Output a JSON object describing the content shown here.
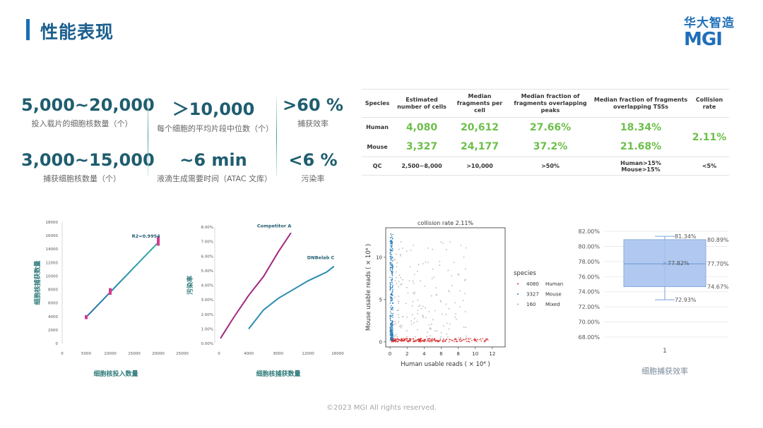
{
  "header": {
    "title": "性能表现"
  },
  "logo": {
    "cn": "华大智造",
    "en": "MGI"
  },
  "stats": [
    {
      "value": "5,000~20,000",
      "label": "投入载片的细胞核数量（个）"
    },
    {
      "value": "＞10,000",
      "label": "每个细胞的平均片段中位数（个）"
    },
    {
      "value": ">60 %",
      "label": "捕获效率"
    },
    {
      "value": "3,000~15,000",
      "label": "捕获细胞核数量（个）"
    },
    {
      "value": "~6 min",
      "label": "液滴生成需要时间（ATAC 文库）"
    },
    {
      "value": "<6 %",
      "label": "污染率"
    }
  ],
  "table": {
    "headers": [
      "Species",
      "Estimated number of cells",
      "Median fragments per cell",
      "Median fraction of fragments overlapping peaks",
      "Median fraction of fragments overlapping TSSs",
      "Collision rate"
    ],
    "rows": [
      {
        "species": "Human",
        "cells": "4,080",
        "fragments": "20,612",
        "peaks": "27.66%",
        "tss": "18.34%"
      },
      {
        "species": "Mouse",
        "cells": "3,327",
        "fragments": "24,177",
        "peaks": "37.2%",
        "tss": "21.68%"
      }
    ],
    "collision": "2.11%",
    "qc": {
      "species": "QC",
      "cells": "2,500~8,000",
      "fragments": ">10,000",
      "peaks": ">50%",
      "tss_line1": "Human>15%",
      "tss_line2": "Mouse>15%",
      "collision": "<5%"
    }
  },
  "chart_data": [
    {
      "type": "line",
      "xlabel": "细胞核投入数量",
      "ylabel": "细胞核捕获数量",
      "annotation": "R2=0.9954",
      "xticks": [
        "0",
        "5000",
        "10000",
        "15000",
        "20000",
        "25000"
      ],
      "yticks": [
        "0",
        "2000",
        "4000",
        "6000",
        "8000",
        "10000",
        "12000",
        "14000",
        "16000",
        "18000"
      ],
      "xlim": [
        0,
        25000
      ],
      "ylim": [
        0,
        18000
      ],
      "x": [
        5000,
        10000,
        20000
      ],
      "y": [
        3900,
        7600,
        15000
      ],
      "error_bars": [
        [
          3600,
          4200
        ],
        [
          7200,
          8200
        ],
        [
          14500,
          15800
        ]
      ],
      "grid": false
    },
    {
      "type": "line",
      "xlabel": "细胞核捕获数量",
      "ylabel": "污染率",
      "xticks": [
        "0",
        "4000",
        "8000",
        "12000",
        "16000"
      ],
      "yticks": [
        "0.00%",
        "1.00%",
        "2.00%",
        "3.00%",
        "4.00%",
        "5.00%",
        "6.00%",
        "7.00%",
        "8.00%"
      ],
      "xlim": [
        0,
        16000
      ],
      "ylim": [
        0,
        8
      ],
      "series": [
        {
          "name": "Competitor A",
          "color": "#a0287e",
          "x": [
            200,
            2000,
            4000,
            6000,
            8000,
            9700
          ],
          "y": [
            0.35,
            1.8,
            3.3,
            4.6,
            6.3,
            7.6
          ]
        },
        {
          "name": "DNBelab C",
          "color": "#2a8bb0",
          "x": [
            4000,
            6000,
            8000,
            10000,
            12000,
            14500,
            15500
          ],
          "y": [
            1.0,
            2.3,
            3.1,
            3.7,
            4.3,
            4.9,
            5.3
          ]
        }
      ],
      "grid": false
    },
    {
      "type": "scatter",
      "title": "collision rate 2.11%",
      "xlabel": "Human usable reads ( × 10⁴ )",
      "ylabel": "Mouse usable reads ( × 10⁴ )",
      "xticks": [
        "0",
        "2",
        "4",
        "6",
        "8",
        "10",
        "12"
      ],
      "yticks": [
        "0",
        "5",
        "10"
      ],
      "xlim": [
        -0.5,
        13.5
      ],
      "ylim": [
        -0.6,
        13.5
      ],
      "legend_title": "species",
      "legend": [
        {
          "count": "4080",
          "name": "Human",
          "color": "#d62728"
        },
        {
          "count": "3327",
          "name": "Mouse",
          "color": "#1f77b4"
        },
        {
          "count": "160",
          "name": "Mixed",
          "color": "#aaaaaa"
        }
      ],
      "series": [
        {
          "name": "Human",
          "count": 4080,
          "x_range": [
            0.2,
            12
          ],
          "y_range": [
            0,
            0.4
          ]
        },
        {
          "name": "Mouse",
          "count": 3327,
          "x_range": [
            0,
            0.35
          ],
          "y_range": [
            0.2,
            13
          ]
        },
        {
          "name": "Mixed",
          "count": 160,
          "x_range": [
            0.5,
            9
          ],
          "y_range": [
            0.5,
            12
          ]
        }
      ]
    },
    {
      "type": "box",
      "xlabel": "细胞捕获效率",
      "category": "1",
      "yticks": [
        "68.00%",
        "70.00%",
        "72.00%",
        "74.00%",
        "76.00%",
        "78.00%",
        "80.00%",
        "82.00%"
      ],
      "ylim": [
        68,
        82
      ],
      "whisker_high": 81.34,
      "q3": 80.89,
      "mean": 77.82,
      "median": 77.7,
      "q1": 74.67,
      "whisker_low": 72.93,
      "labels": {
        "whisker_high": "81.34%",
        "q3": "80.89%",
        "mean": "77.82%",
        "median": "77.70%",
        "q1": "74.67%",
        "whisker_low": "72.93%"
      },
      "color": "#a9c4f0"
    }
  ],
  "footer": "©2023 MGI All rights reserved."
}
